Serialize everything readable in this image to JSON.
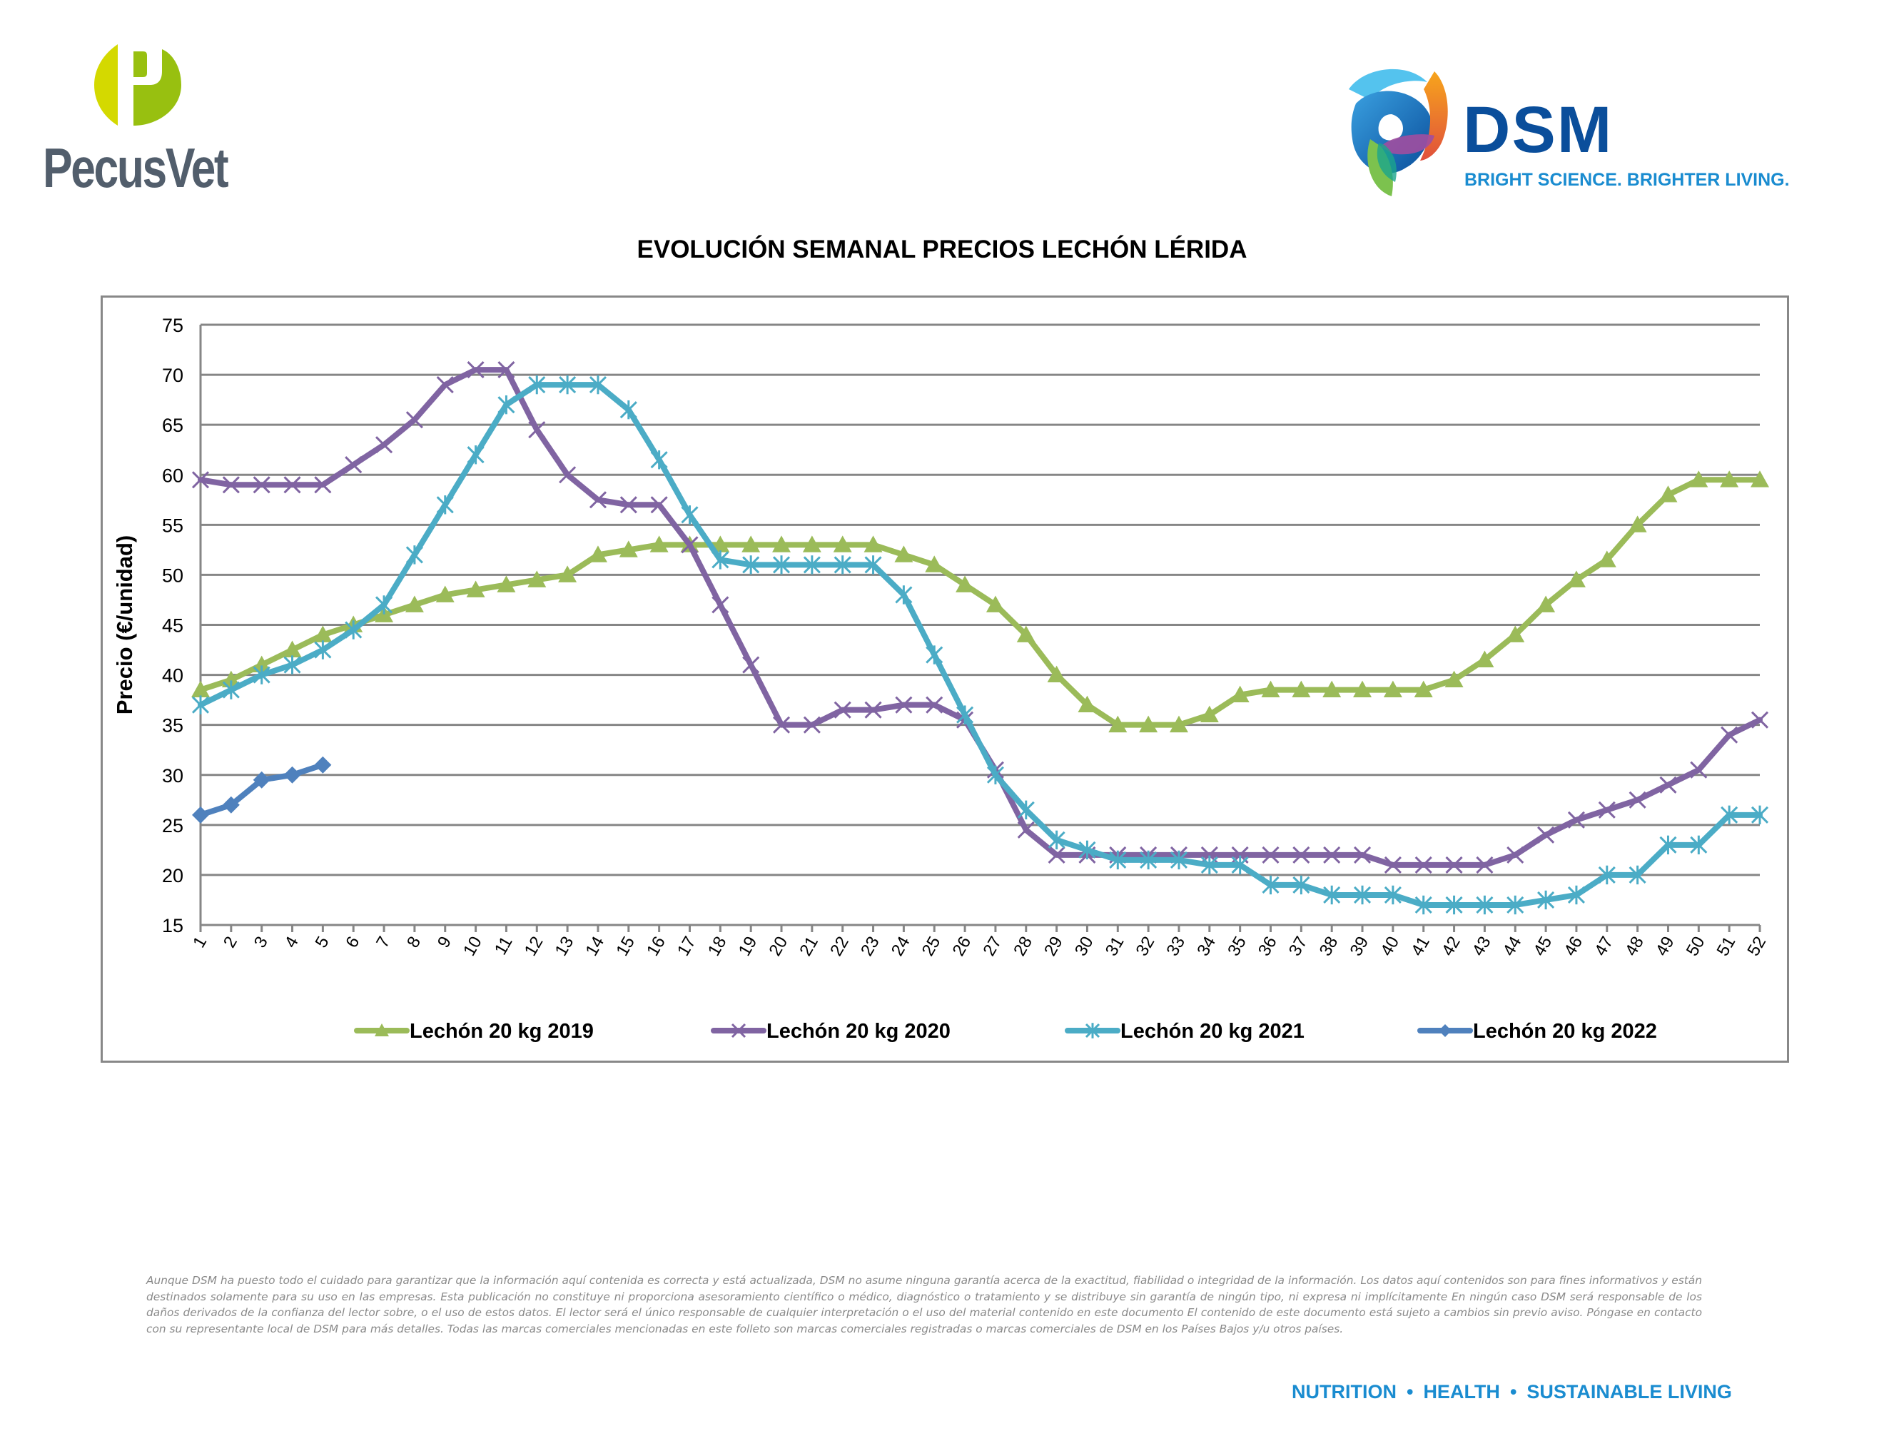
{
  "logos": {
    "left": {
      "name": "PecusVet",
      "mark_letter": "P",
      "colors": {
        "light": "#d4d900",
        "dark": "#98c010",
        "text": "#525e6c"
      }
    },
    "right": {
      "name": "DSM",
      "tagline": "BRIGHT SCIENCE. BRIGHTER LIVING.",
      "colors": {
        "name": "#0a4e9b",
        "tagline": "#1a8cd0"
      }
    }
  },
  "chart_data": {
    "type": "line",
    "title": "EVOLUCIÓN SEMANAL PRECIOS LECHÓN LÉRIDA",
    "xlabel": "",
    "ylabel": "Precio (€/unidad)",
    "ylim": [
      15,
      75
    ],
    "yticks": [
      15,
      20,
      25,
      30,
      35,
      40,
      45,
      50,
      55,
      60,
      65,
      70,
      75
    ],
    "grid": "horizontal",
    "legend_position": "bottom",
    "x": [
      1,
      2,
      3,
      4,
      5,
      6,
      7,
      8,
      9,
      10,
      11,
      12,
      13,
      14,
      15,
      16,
      17,
      18,
      19,
      20,
      21,
      22,
      23,
      24,
      25,
      26,
      27,
      28,
      29,
      30,
      31,
      32,
      33,
      34,
      35,
      36,
      37,
      38,
      39,
      40,
      41,
      42,
      43,
      44,
      45,
      46,
      47,
      48,
      49,
      50,
      51,
      52
    ],
    "series": [
      {
        "name": "Lechón 20 kg 2019",
        "color": "#9bbb59",
        "marker": "triangle",
        "values": [
          38.5,
          39.5,
          41,
          42.5,
          44,
          45,
          46,
          47,
          48,
          48.5,
          49,
          49.5,
          50,
          52,
          52.5,
          53,
          53,
          53,
          53,
          53,
          53,
          53,
          53,
          52,
          51,
          49,
          47,
          44,
          40,
          37,
          35,
          35,
          35,
          36,
          38,
          38.5,
          38.5,
          38.5,
          38.5,
          38.5,
          38.5,
          39.5,
          41.5,
          44,
          47,
          49.5,
          51.5,
          55,
          58,
          59.5,
          59.5,
          59.5
        ]
      },
      {
        "name": "Lechón 20 kg 2020",
        "color": "#8064a2",
        "marker": "x",
        "values": [
          59.5,
          59,
          59,
          59,
          59,
          61,
          63,
          65.5,
          69,
          70.5,
          70.5,
          64.5,
          60,
          57.5,
          57,
          57,
          53,
          47,
          41,
          35,
          35,
          36.5,
          36.5,
          37,
          37,
          35.5,
          30.5,
          24.5,
          22,
          22,
          22,
          22,
          22,
          22,
          22,
          22,
          22,
          22,
          22,
          21,
          21,
          21,
          21,
          22,
          24,
          25.5,
          26.5,
          27.5,
          29,
          30.5,
          34,
          35.5
        ]
      },
      {
        "name": "Lechón 20 kg 2021",
        "color": "#4bacc6",
        "marker": "star",
        "values": [
          37,
          38.5,
          40,
          41,
          42.5,
          44.5,
          47,
          52,
          57,
          62,
          67,
          69,
          69,
          69,
          66.5,
          61.5,
          56,
          51.5,
          51,
          51,
          51,
          51,
          51,
          48,
          42,
          36,
          30,
          26.5,
          23.5,
          22.5,
          21.5,
          21.5,
          21.5,
          21,
          21,
          19,
          19,
          18,
          18,
          18,
          17,
          17,
          17,
          17,
          17.5,
          18,
          20,
          20,
          23,
          23,
          26,
          26
        ]
      },
      {
        "name": "Lechón 20 kg 2022",
        "color": "#4f81bd",
        "marker": "diamond",
        "values": [
          26,
          27,
          29.5,
          30,
          31
        ]
      }
    ]
  },
  "disclaimer": "Aunque DSM ha puesto todo el cuidado para garantizar que la información aquí contenida es correcta y está actualizada, DSM no asume ninguna garantía acerca de la exactitud, fiabilidad o integridad de la información. Los datos aquí contenidos son para fines informativos y están destinados solamente para su uso en las empresas. Esta publicación no constituye ni proporciona asesoramiento científico o médico, diagnóstico o tratamiento y se distribuye sin garantía de ningún tipo, ni expresa ni implícitamente En ningún caso DSM será responsable de los daños derivados de la confianza del lector sobre, o el uso de estos datos. El lector será el único responsable de cualquier interpretación o el uso del material contenido en este documento El contenido de este documento está sujeto a cambios sin previo aviso. Póngase en contacto con su representante local de DSM para más detalles. Todas las marcas comerciales mencionadas en este folleto son marcas comerciales registradas o marcas comerciales de DSM en los Países Bajos y/u otros países.",
  "footer": {
    "items": [
      "NUTRITION",
      "HEALTH",
      "SUSTAINABLE LIVING"
    ],
    "separator": "•"
  }
}
